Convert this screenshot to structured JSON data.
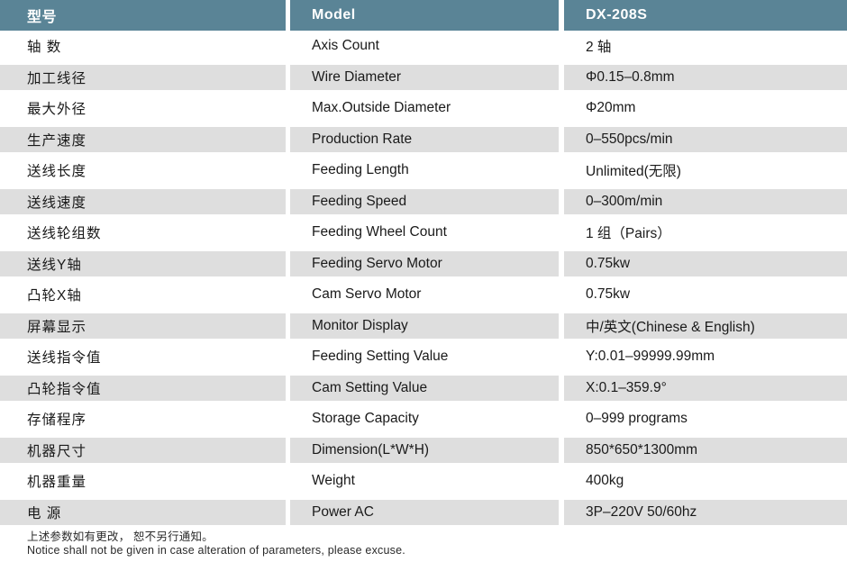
{
  "table": {
    "header": {
      "cn": "型号",
      "en": "Model",
      "value": "DX-208S"
    },
    "rows": [
      {
        "cn": "轴 数",
        "en": "Axis Count",
        "value": "2 轴"
      },
      {
        "cn": "加工线径",
        "en": "Wire Diameter",
        "value": "Φ0.15–0.8mm"
      },
      {
        "cn": "最大外径",
        "en": "Max.Outside Diameter",
        "value": "Φ20mm"
      },
      {
        "cn": "生产速度",
        "en": "Production Rate",
        "value": "0–550pcs/min"
      },
      {
        "cn": "送线长度",
        "en": "Feeding Length",
        "value": "Unlimited(无限)"
      },
      {
        "cn": "送线速度",
        "en": "Feeding Speed",
        "value": "0–300m/min"
      },
      {
        "cn": "送线轮组数",
        "en": "Feeding Wheel Count",
        "value": "1 组（Pairs）"
      },
      {
        "cn": "送线Y轴",
        "en": "Feeding Servo Motor",
        "value": "0.75kw"
      },
      {
        "cn": "凸轮X轴",
        "en": "Cam Servo Motor",
        "value": "0.75kw"
      },
      {
        "cn": "屏幕显示",
        "en": "Monitor Display",
        "value": "中/英文(Chinese & English)"
      },
      {
        "cn": "送线指令值",
        "en": "Feeding Setting Value",
        "value": "Y:0.01–99999.99mm"
      },
      {
        "cn": "凸轮指令值",
        "en": "Cam Setting Value",
        "value": "X:0.1–359.9°"
      },
      {
        "cn": "存储程序",
        "en": "Storage Capacity",
        "value": "0–999 programs"
      },
      {
        "cn": "机器尺寸",
        "en": "Dimension(L*W*H)",
        "value": "850*650*1300mm"
      },
      {
        "cn": "机器重量",
        "en": "Weight",
        "value": "400kg"
      },
      {
        "cn": "电 源",
        "en": "Power AC",
        "value": "3P–220V 50/60hz"
      }
    ]
  },
  "footer": {
    "line_cn": "上述参数如有更改， 恕不另行通知。",
    "line_en": "Notice shall not be given in case alteration of parameters, please excuse."
  },
  "colors": {
    "header_bg": "#5a8496",
    "shaded_row_bg": "#dedede",
    "text": "#1a1a1a",
    "header_text": "#ffffff"
  }
}
